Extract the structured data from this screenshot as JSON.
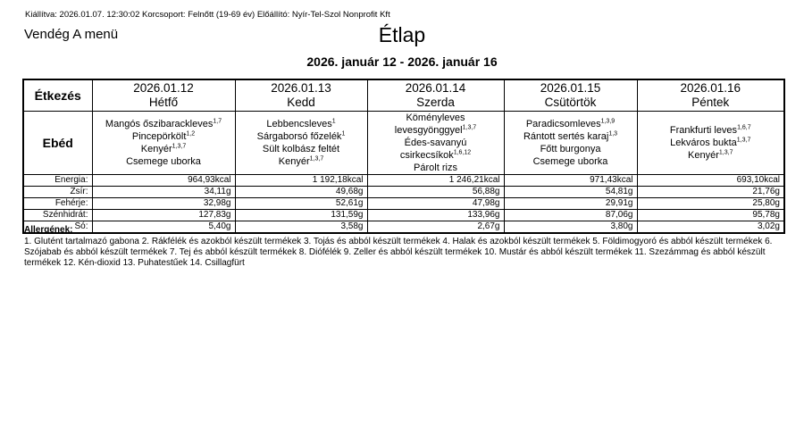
{
  "meta_line": "Kiállítva: 2026.01.07. 12:30:02 Korcsoport: Felnőtt (19-69 év) Előállító: Nyír-Tel-Szol Nonprofit Kft",
  "menu_name": "Vendég A menü",
  "title": "Étlap",
  "date_range": "2026. január 12 - 2026. január 16",
  "table": {
    "meal_header": "Étkezés",
    "meal_row_label": "Ebéd",
    "days": [
      {
        "date": "2026.01.12",
        "day": "Hétfő",
        "items": [
          {
            "name": "Mangós őszibarackleves",
            "sup": "1,7"
          },
          {
            "name": "Pincepörkölt",
            "sup": "1,2"
          },
          {
            "name": "Kenyér",
            "sup": "1,3,7"
          },
          {
            "name": "Csemege uborka",
            "sup": ""
          }
        ]
      },
      {
        "date": "2026.01.13",
        "day": "Kedd",
        "items": [
          {
            "name": "Lebbencsleves",
            "sup": "1"
          },
          {
            "name": "Sárgaborsó főzelék",
            "sup": "1"
          },
          {
            "name": "Sült kolbász feltét",
            "sup": ""
          },
          {
            "name": "Kenyér",
            "sup": "1,3,7"
          }
        ]
      },
      {
        "date": "2026.01.14",
        "day": "Szerda",
        "items": [
          {
            "name": "Köményleves levesgyönggyel",
            "sup": "1,3,7"
          },
          {
            "name": "Édes-savanyú csirkecsíkok",
            "sup": "1,6,12"
          },
          {
            "name": "Párolt rizs",
            "sup": ""
          }
        ]
      },
      {
        "date": "2026.01.15",
        "day": "Csütörtök",
        "items": [
          {
            "name": "Paradicsomleves",
            "sup": "1,3,9"
          },
          {
            "name": "Rántott sertés karaj",
            "sup": "1,3"
          },
          {
            "name": "Főtt burgonya",
            "sup": ""
          },
          {
            "name": "Csemege uborka",
            "sup": ""
          }
        ]
      },
      {
        "date": "2026.01.16",
        "day": "Péntek",
        "items": [
          {
            "name": "Frankfurti leves",
            "sup": "1,6,7"
          },
          {
            "name": "Lekváros bukta",
            "sup": "1,3,7"
          },
          {
            "name": "Kenyér",
            "sup": "1,3,7"
          }
        ]
      }
    ],
    "nutrition_rows": [
      {
        "label": "Energia:",
        "values": [
          "964,93kcal",
          "1 192,18kcal",
          "1 246,21kcal",
          "971,43kcal",
          "693,10kcal"
        ]
      },
      {
        "label": "Zsír:",
        "values": [
          "34,11g",
          "49,68g",
          "56,88g",
          "54,81g",
          "21,76g"
        ]
      },
      {
        "label": "Fehérje:",
        "values": [
          "32,98g",
          "52,61g",
          "47,98g",
          "29,91g",
          "25,80g"
        ]
      },
      {
        "label": "Szénhidrát:",
        "values": [
          "127,83g",
          "131,59g",
          "133,96g",
          "87,06g",
          "95,78g"
        ]
      },
      {
        "label": "Só:",
        "values": [
          "5,40g",
          "3,58g",
          "2,67g",
          "3,80g",
          "3,02g"
        ]
      }
    ]
  },
  "allergens": {
    "heading": "Allergének:",
    "text": "1. Glutént tartalmazó gabona 2. Rákfélék és azokból készült termékek 3. Tojás és abból készült termékek 4. Halak és azokból készült termékek 5. Földimogyoró és abból készült termékek 6. Szójabab és abból készült termékek 7. Tej és abból készült termékek 8. Diófélék 9. Zeller és abból készült termékek 10. Mustár és abból készült termékek 11. Szezámmag és abból készült termékek 12. Kén-dioxid 13. Puhatestűek 14. Csillagfürt"
  }
}
